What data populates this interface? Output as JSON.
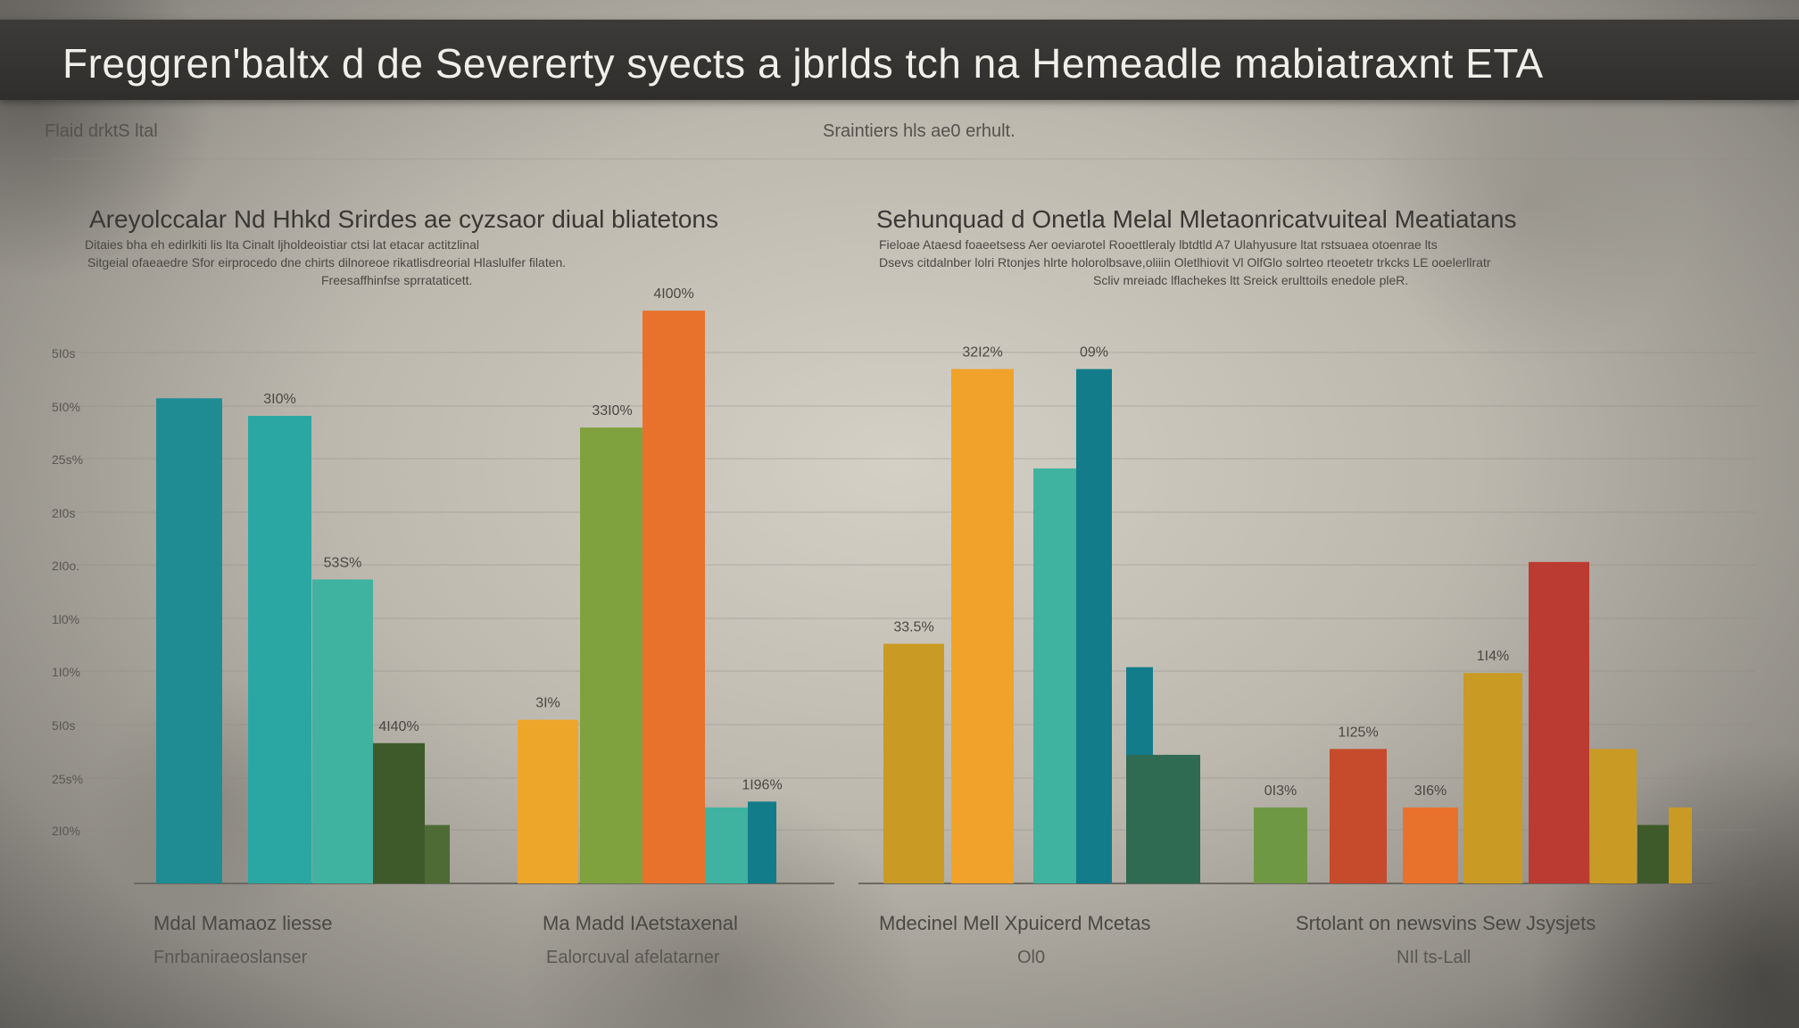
{
  "title": "Freggren'baltx d de Severerty syects a jbrlds tch na Hemeadle mabiatraxnt ETA",
  "top_labels": {
    "left": "Flaid drktS ltal",
    "center": "Sraintiers hls ae0 erhult."
  },
  "panels": [
    {
      "title": "Areyolccalar Nd Hhkd Srirdes ae cyzsaor diual bliatetons",
      "subtitle_lines": [
        "Ditaies bha eh edirlkiti lis lta Cinalt ljholdeoistiar ctsi lat etacar actitzlinal",
        "Sitgeial ofaeaedre Sfor eirprocedo dne chirts dilnoreoe rikatlisdreorial Hlaslulfer filaten.",
        "Freesaffhinfse sprrataticett."
      ]
    },
    {
      "title": "Sehunquad d Onetla Melal Mletaonricatvuiteal Meatiatans",
      "subtitle_lines": [
        "Fieloae Ataesd foaeetsess Aer oeviarotel Rooettleraly lbtdtld A7 Ulahyusure ltat rstsuaea otoenrae lts",
        "Dsevs citdalnber lolri Rtonjes hlrte holorolbsave,oliiin Oletlhiovit Vl OlfGlo solrteo rteoetetr trkcks LE ooelerllratr",
        "Scliv mreiadc lflachekes ltt Sreick erulttoils enedole pleR."
      ]
    }
  ],
  "y_tick_labels": [
    "5I0s",
    "5I0%",
    "25s%",
    "2I0s",
    "2I0o.",
    "1l0%",
    "1I0%",
    "5I0s",
    "25s%",
    "2I0%"
  ],
  "category_labels": [
    {
      "main": "Mdal Mamaoz liesse",
      "sub": "Fnrbaniraeoslanser"
    },
    {
      "main": "Ma Madd IAetstaxenal",
      "sub": "Ealorcuval afelatarner"
    },
    {
      "main": "Mdecinel Mell Xpuicerd Mcetas",
      "sub": "Ol0"
    },
    {
      "main": "Srtolant on newsvins Sew Jsysjets",
      "sub": "NIl ts-Lall"
    }
  ],
  "colors": {
    "teal_dark": "#1f8c94",
    "teal": "#2aa7a3",
    "teal_light": "#3fb3a0",
    "olive_dark": "#3e5a2a",
    "olive": "#4f6b35",
    "yellow": "#eea62a",
    "green": "#7fa23e",
    "orange": "#e8722c",
    "teal_blue": "#137c8a",
    "mustard": "#c99a24",
    "amber": "#f0a22a",
    "forest": "#2f6a52",
    "red_orange": "#c64a2c",
    "crimson": "#bb3b32",
    "leaf": "#6f9844"
  },
  "chart_data": {
    "type": "bar",
    "title": "Freggren'baltx d de Severerty syects a jbrlds tch na Hemeadle mabiatraxnt ETA",
    "y_max": 100,
    "bars": [
      {
        "value": 83,
        "label": "",
        "color": "teal_dark"
      },
      {
        "value": 80,
        "label": "3I0%",
        "color": "teal"
      },
      {
        "value": 52,
        "label": "53S%",
        "color": "teal_light"
      },
      {
        "value": 24,
        "label": "4I40%",
        "color": "olive_dark"
      },
      {
        "value": 10,
        "label": "",
        "color": "olive"
      },
      {
        "value": 28,
        "label": "3I%",
        "color": "yellow"
      },
      {
        "value": 78,
        "label": "33I0%",
        "color": "green"
      },
      {
        "value": 98,
        "label": "4I00%",
        "color": "orange"
      },
      {
        "value": 13,
        "label": "",
        "color": "teal_light"
      },
      {
        "value": 14,
        "label": "1I96%",
        "color": "teal_blue"
      },
      {
        "value": 41,
        "label": "33.5%",
        "color": "mustard"
      },
      {
        "value": 88,
        "label": "32I2%",
        "color": "amber"
      },
      {
        "value": 71,
        "label": "",
        "color": "teal_light"
      },
      {
        "value": 88,
        "label": "09%",
        "color": "teal_blue"
      },
      {
        "value": 37,
        "label": "",
        "color": "teal_blue"
      },
      {
        "value": 22,
        "label": "",
        "color": "forest"
      },
      {
        "value": 22,
        "label": "",
        "color": "forest"
      },
      {
        "value": 13,
        "label": "0I3%",
        "color": "leaf"
      },
      {
        "value": 23,
        "label": "1I25%",
        "color": "red_orange"
      },
      {
        "value": 13,
        "label": "3I6%",
        "color": "orange"
      },
      {
        "value": 36,
        "label": "1I4%",
        "color": "mustard"
      },
      {
        "value": 55,
        "label": "",
        "color": "crimson"
      },
      {
        "value": 23,
        "label": "",
        "color": "mustard"
      },
      {
        "value": 10,
        "label": "",
        "color": "olive_dark"
      },
      {
        "value": 13,
        "label": "",
        "color": "mustard"
      }
    ]
  }
}
